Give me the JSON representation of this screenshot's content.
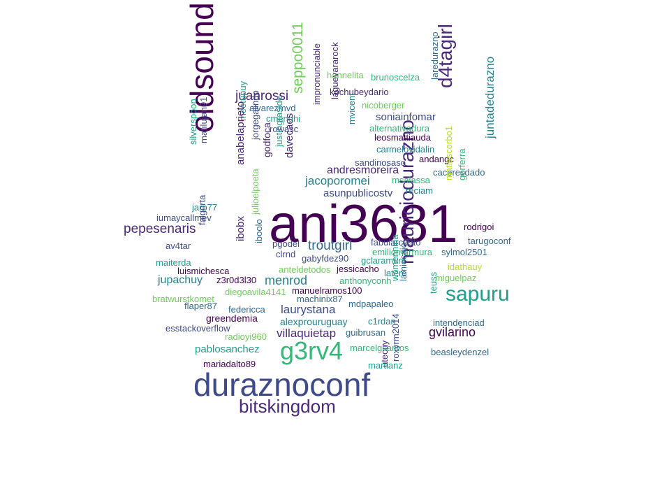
{
  "cloud": {
    "colors": {
      "dark_purple": "#440154",
      "purple": "#482878",
      "indigo": "#3e4a89",
      "blue": "#31688e",
      "teal": "#26828e",
      "sea": "#1f9e89",
      "green": "#35b779",
      "light_green": "#6ece58",
      "lime": "#b5de2b"
    },
    "words": [
      {
        "id": "ani3681",
        "text": "ani3681",
        "weight": 100
      },
      {
        "id": "duraznoconf",
        "text": "duraznoconf",
        "weight": 60
      },
      {
        "id": "oldsound",
        "text": "oldsound",
        "weight": 55
      },
      {
        "id": "mauriciodurazno",
        "text": "mauriciodurazno",
        "weight": 30
      },
      {
        "id": "g3rv4",
        "text": "g3rv4",
        "weight": 40
      },
      {
        "id": "sapuru",
        "text": "sapuru",
        "weight": 35
      },
      {
        "id": "d4tagirl",
        "text": "d4tagirl",
        "weight": 30
      },
      {
        "id": "bitskingdom",
        "text": "bitskingdom",
        "weight": 30
      },
      {
        "id": "juanrossi",
        "text": "juanrossi"
      },
      {
        "id": "seppo0011",
        "text": "seppo0011"
      },
      {
        "id": "hannelita",
        "text": "hannelita"
      },
      {
        "id": "brunoscelza",
        "text": "brunoscelza"
      },
      {
        "id": "kochubeydario",
        "text": "kochubeydario"
      },
      {
        "id": "alvarezmvd",
        "text": "alvarezmvd"
      },
      {
        "id": "nicoberger",
        "text": "nicoberger"
      },
      {
        "id": "laredurazno",
        "text": "laredurazno"
      },
      {
        "id": "cmenghi",
        "text": "cmenghi"
      },
      {
        "id": "soniainfomar",
        "text": "soniainfomar"
      },
      {
        "id": "rowasc",
        "text": "rowasc"
      },
      {
        "id": "alternativadura",
        "text": "alternativadura"
      },
      {
        "id": "meetupuy",
        "text": "meetupuy"
      },
      {
        "id": "impronunciable",
        "text": "impronunciable"
      },
      {
        "id": "laguevararock",
        "text": "laguevararock"
      },
      {
        "id": "mvicent",
        "text": "mvicent"
      },
      {
        "id": "leosmattiauda",
        "text": "leosmattiauda"
      },
      {
        "id": "carmelovidalin",
        "text": "carmelovidalin"
      },
      {
        "id": "silverspoon",
        "text": "silverspoon"
      },
      {
        "id": "matilujan91",
        "text": "matilujan91"
      },
      {
        "id": "jorgegalindo",
        "text": "jorgegalindo"
      },
      {
        "id": "justingraside",
        "text": "justingraside"
      },
      {
        "id": "godfoca",
        "text": "godfoca"
      },
      {
        "id": "davecaos",
        "text": "davecaos"
      },
      {
        "id": "sandinosaso",
        "text": "sandinosaso"
      },
      {
        "id": "andangc",
        "text": "andangc"
      },
      {
        "id": "juntadedurazno",
        "text": "juntadedurazno"
      },
      {
        "id": "anabelaprieto",
        "text": "anabelaprieto"
      },
      {
        "id": "andresmoreira",
        "text": "andresmoreira"
      },
      {
        "id": "caceresdado",
        "text": "caceresdado"
      },
      {
        "id": "jacoporomei",
        "text": "jacoporomei"
      },
      {
        "id": "msalassa",
        "text": "msalassa"
      },
      {
        "id": "asunpublicostv",
        "text": "asunpublicostv"
      },
      {
        "id": "reciam",
        "text": "reciam"
      },
      {
        "id": "jarp77",
        "text": "jarp77"
      },
      {
        "id": "iumaycallmev",
        "text": "iumaycallmev"
      },
      {
        "id": "matiascorbo1",
        "text": "matiascorbo1"
      },
      {
        "id": "gerferra",
        "text": "gerferra"
      },
      {
        "id": "rodrigoi",
        "text": "rodrigoi"
      },
      {
        "id": "pepesenaris",
        "text": "pepesenaris"
      },
      {
        "id": "ibobx",
        "text": "ibobx"
      },
      {
        "id": "falgorta",
        "text": "falgorta"
      },
      {
        "id": "iboolo",
        "text": "iboolo"
      },
      {
        "id": "julioelpoeta",
        "text": "julioelpoeta"
      },
      {
        "id": "pgodel",
        "text": "pgodel"
      },
      {
        "id": "troutgirl",
        "text": "troutgirl"
      },
      {
        "id": "fabularcierto",
        "text": "fabularcierto"
      },
      {
        "id": "tarugoconf",
        "text": "tarugoconf"
      },
      {
        "id": "av4tar",
        "text": "av4tar"
      },
      {
        "id": "clrnd",
        "text": "clrnd"
      },
      {
        "id": "emiliomarmura",
        "text": "emiliomarmura"
      },
      {
        "id": "sylmol2501",
        "text": "sylmol2501"
      },
      {
        "id": "gabyfdez90",
        "text": "gabyfdez90"
      },
      {
        "id": "gclaramunt",
        "text": "gclaramunt"
      },
      {
        "id": "maiterda",
        "text": "maiterda"
      },
      {
        "id": "anteldetodos",
        "text": "anteldetodos"
      },
      {
        "id": "jessicacho",
        "text": "jessicacho"
      },
      {
        "id": "idathauy",
        "text": "idathauy"
      },
      {
        "id": "luismichesca",
        "text": "luismichesca"
      },
      {
        "id": "latere",
        "text": "latere"
      },
      {
        "id": "jupachuy",
        "text": "jupachuy"
      },
      {
        "id": "z3r0d3l30",
        "text": "z3r0d3l30"
      },
      {
        "id": "menrod",
        "text": "menrod"
      },
      {
        "id": "anthonyconh",
        "text": "anthonyconh"
      },
      {
        "id": "miguelpaz",
        "text": "miguelpaz"
      },
      {
        "id": "diegoavila4141",
        "text": "diegoavila4141"
      },
      {
        "id": "manuelramos100",
        "text": "manuelramos100"
      },
      {
        "id": "womennina",
        "text": "womennina"
      },
      {
        "id": "lamiocajo",
        "text": "lamiocajo"
      },
      {
        "id": "bratwurstkomet",
        "text": "bratwurstkomet"
      },
      {
        "id": "machinix87",
        "text": "machinix87"
      },
      {
        "id": "teuss",
        "text": "teuss"
      },
      {
        "id": "flaper87",
        "text": "flaper87"
      },
      {
        "id": "federicca",
        "text": "federicca"
      },
      {
        "id": "laurystana",
        "text": "laurystana"
      },
      {
        "id": "mdpapaleo",
        "text": "mdpapaleo"
      },
      {
        "id": "greendemia",
        "text": "greendemia"
      },
      {
        "id": "alexprouruguay",
        "text": "alexprouruguay"
      },
      {
        "id": "c1rdan",
        "text": "c1rdan"
      },
      {
        "id": "intendenciad",
        "text": "intendenciad"
      },
      {
        "id": "esstackoverflow",
        "text": "esstackoverflow"
      },
      {
        "id": "villaquietap",
        "text": "villaquietap"
      },
      {
        "id": "guibrusan",
        "text": "guibrusan"
      },
      {
        "id": "gvilarino",
        "text": "gvilarino"
      },
      {
        "id": "radioyi960",
        "text": "radioyi960"
      },
      {
        "id": "marcelgsantos",
        "text": "marcelgsantos"
      },
      {
        "id": "pablosanchez",
        "text": "pablosanchez"
      },
      {
        "id": "beasleydenzel",
        "text": "beasleydenzel"
      },
      {
        "id": "mariadalto89",
        "text": "mariadalto89"
      },
      {
        "id": "martianz",
        "text": "martianz"
      },
      {
        "id": "utecuy",
        "text": "utecuy"
      },
      {
        "id": "roxyrm2014",
        "text": "roxyrm2014"
      }
    ]
  }
}
